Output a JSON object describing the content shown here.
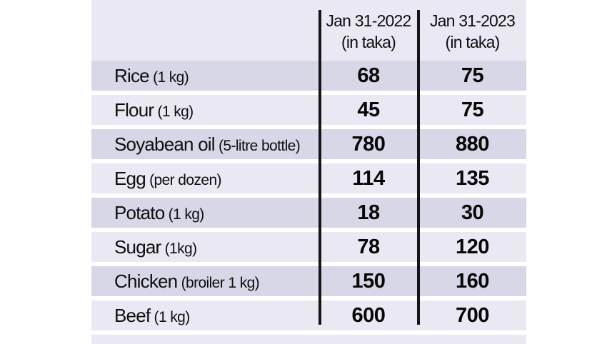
{
  "table": {
    "header": {
      "col_2022": {
        "line1": "Jan 31-2022",
        "line2": "(in taka)"
      },
      "col_2023": {
        "line1": "Jan 31-2023",
        "line2": "(in taka)"
      }
    },
    "rows": [
      {
        "item": "Rice",
        "detail": "(1 kg)",
        "y2022": "68",
        "y2023": "75"
      },
      {
        "item": "Flour",
        "detail": "(1 kg)",
        "y2022": "45",
        "y2023": "75"
      },
      {
        "item": "Soyabean oil",
        "detail": "(5-litre bottle)",
        "y2022": "780",
        "y2023": "880"
      },
      {
        "item": "Egg",
        "detail": "(per dozen)",
        "y2022": "114",
        "y2023": "135"
      },
      {
        "item": "Potato",
        "detail": "(1 kg)",
        "y2022": "18",
        "y2023": "30"
      },
      {
        "item": "Sugar",
        "detail": "(1kg)",
        "y2022": "78",
        "y2023": "120"
      },
      {
        "item": "Chicken",
        "detail": "(broiler 1 kg)",
        "y2022": "150",
        "y2023": "160"
      },
      {
        "item": "Beef",
        "detail": "(1 kg)",
        "y2022": "600",
        "y2023": "700"
      }
    ],
    "colors": {
      "row_dark": "#d8d7e7",
      "row_light": "#eae9f3",
      "header_bg": "#eae9f3",
      "divider": "#151515",
      "page_bg": "#ffffff"
    }
  },
  "chart_data": {
    "type": "table",
    "title": "",
    "categories": [
      "Rice (1 kg)",
      "Flour (1 kg)",
      "Soyabean oil (5-litre bottle)",
      "Egg (per dozen)",
      "Potato (1 kg)",
      "Sugar (1kg)",
      "Chicken (broiler 1 kg)",
      "Beef (1 kg)"
    ],
    "series": [
      {
        "name": "Jan 31-2022 (in taka)",
        "values": [
          68,
          45,
          780,
          114,
          18,
          78,
          150,
          600
        ]
      },
      {
        "name": "Jan 31-2023 (in taka)",
        "values": [
          75,
          75,
          880,
          135,
          30,
          120,
          160,
          700
        ]
      }
    ],
    "layout": {
      "grid": false,
      "legend_position": "column-headers"
    }
  }
}
